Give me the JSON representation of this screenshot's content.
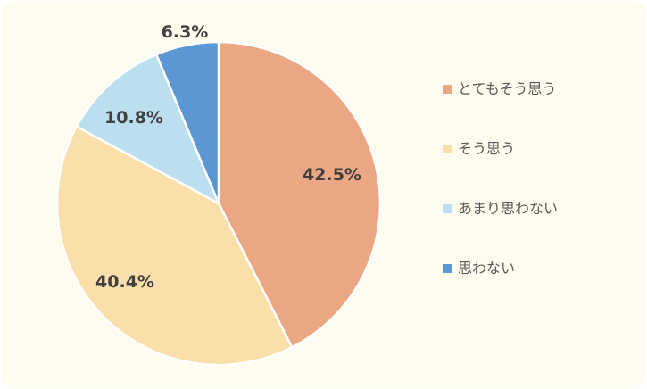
{
  "chart_data": {
    "type": "pie",
    "title": "",
    "start_angle_deg": 0,
    "direction": "clockwise",
    "slices": [
      {
        "label": "とてもそう思う",
        "value": 42.5,
        "value_label": "42.5%",
        "color": "#eba784"
      },
      {
        "label": "そう思う",
        "value": 40.4,
        "value_label": "40.4%",
        "color": "#fadfaa"
      },
      {
        "label": "あまり思わない",
        "value": 10.8,
        "value_label": "10.8%",
        "color": "#bcdff0"
      },
      {
        "label": "思わない",
        "value": 6.3,
        "value_label": "6.3%",
        "color": "#5b97d2"
      }
    ],
    "legend_position": "right",
    "background_color": "#fefbef",
    "slice_border_color": "#ffffff"
  }
}
